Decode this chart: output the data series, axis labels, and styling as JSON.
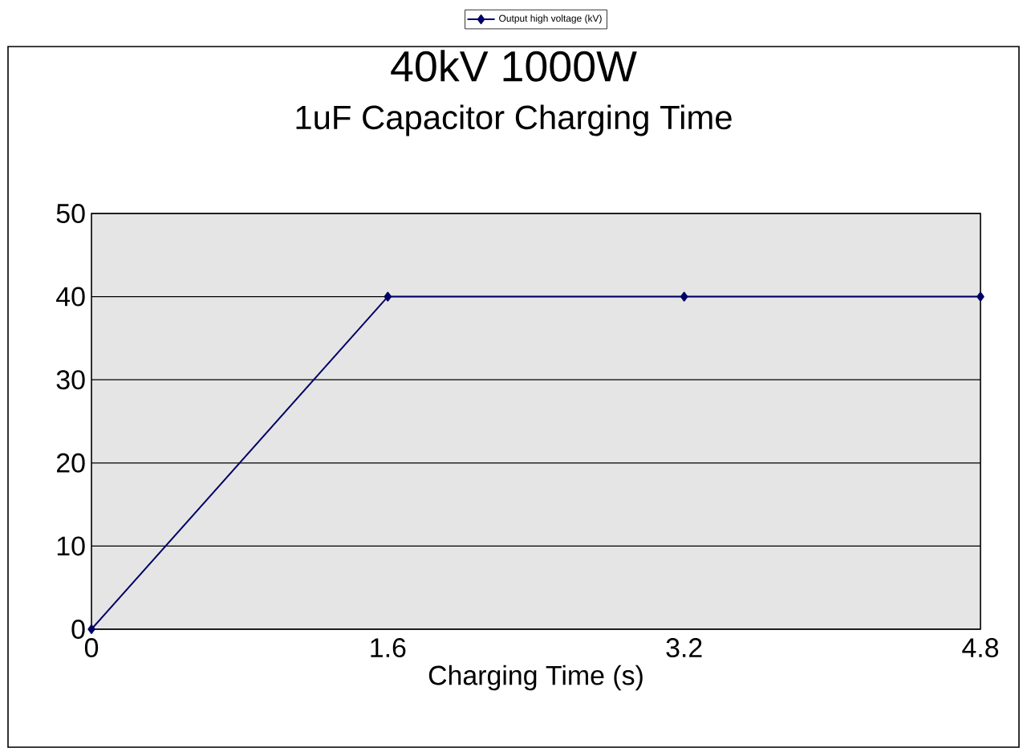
{
  "chart_data": {
    "type": "line",
    "title": "40kV 1000W",
    "subtitle": "1uF Capacitor Charging Time",
    "xlabel": "Charging Time (s)",
    "x": [
      0,
      1.6,
      3.2,
      4.8
    ],
    "series": [
      {
        "name": "Output high voltage (kV)",
        "color": "#000066",
        "values": [
          0,
          40,
          40,
          40
        ]
      }
    ],
    "xlim": [
      0,
      4.8
    ],
    "xticks": [
      0,
      1.6,
      3.2,
      4.8
    ],
    "ylim": [
      0,
      50
    ],
    "yticks": [
      0,
      10,
      20,
      30,
      40,
      50
    ],
    "grid": "y",
    "legend": "top",
    "marker": "diamond",
    "line_style": "solid"
  }
}
